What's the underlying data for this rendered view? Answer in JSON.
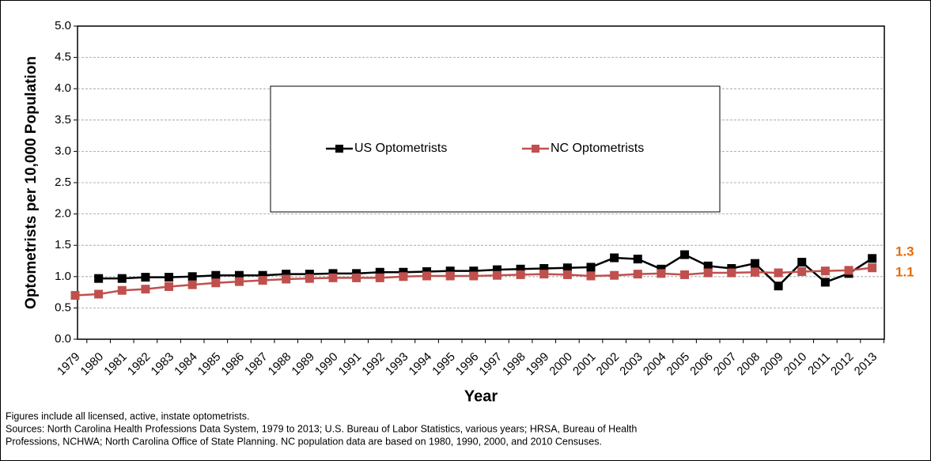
{
  "chart_data": {
    "type": "line",
    "y_label": "Optometrists per 10,000 Population",
    "x_label": "Year",
    "categories": [
      "1979",
      "1980",
      "1981",
      "1982",
      "1983",
      "1984",
      "1985",
      "1986",
      "1987",
      "1988",
      "1989",
      "1990",
      "1991",
      "1992",
      "1993",
      "1994",
      "1995",
      "1996",
      "1997",
      "1998",
      "1999",
      "2000",
      "2001",
      "2002",
      "2003",
      "2004",
      "2005",
      "2006",
      "2007",
      "2008",
      "2009",
      "2010",
      "2011",
      "2012",
      "2013"
    ],
    "series": [
      {
        "name": "US Optometrists",
        "color": "#000000",
        "values": [
          null,
          0.97,
          0.97,
          0.99,
          0.99,
          1.0,
          1.02,
          1.02,
          1.02,
          1.04,
          1.04,
          1.05,
          1.05,
          1.07,
          1.07,
          1.08,
          1.09,
          1.09,
          1.11,
          1.12,
          1.13,
          1.14,
          1.15,
          1.3,
          1.28,
          1.12,
          1.35,
          1.17,
          1.13,
          1.21,
          0.85,
          1.23,
          0.91,
          1.05,
          1.29
        ]
      },
      {
        "name": "NC Optometrists",
        "color": "#c0504d",
        "values": [
          0.7,
          0.72,
          0.78,
          0.8,
          0.84,
          0.87,
          0.9,
          0.92,
          0.94,
          0.96,
          0.97,
          0.98,
          0.98,
          0.98,
          1.0,
          1.01,
          1.01,
          1.01,
          1.02,
          1.03,
          1.04,
          1.03,
          1.01,
          1.02,
          1.04,
          1.05,
          1.03,
          1.06,
          1.06,
          1.07,
          1.06,
          1.08,
          1.09,
          1.1,
          1.14
        ]
      }
    ],
    "ylim": [
      0,
      5
    ],
    "yticks": [
      {
        "value": 0,
        "label": "0.0"
      },
      0.5,
      {
        "value": 1,
        "label": "1.0"
      },
      1.5,
      {
        "value": 2,
        "label": "2.0"
      },
      2.5,
      {
        "value": 3,
        "label": "3.0"
      },
      3.5,
      {
        "value": 4,
        "label": "4.0"
      },
      4.5,
      {
        "value": 5,
        "label": "5.0"
      }
    ],
    "grid": true,
    "annotations": [
      {
        "text": "1.3",
        "value": 1.3,
        "color": "#e46c0a"
      },
      {
        "text": "1.1",
        "value": 1.1,
        "color": "#e46c0a"
      }
    ],
    "notes": [
      "Figures include all licensed, active, instate optometrists.",
      "Sources: North Carolina Health Professions Data System, 1979 to 2013; U.S. Bureau of Labor Statistics, various years; HRSA, Bureau of Health",
      "Professions, NCHWA; North Carolina Office of State Planning. NC population data are based on 1980, 1990, 2000, and 2010 Censuses."
    ]
  }
}
